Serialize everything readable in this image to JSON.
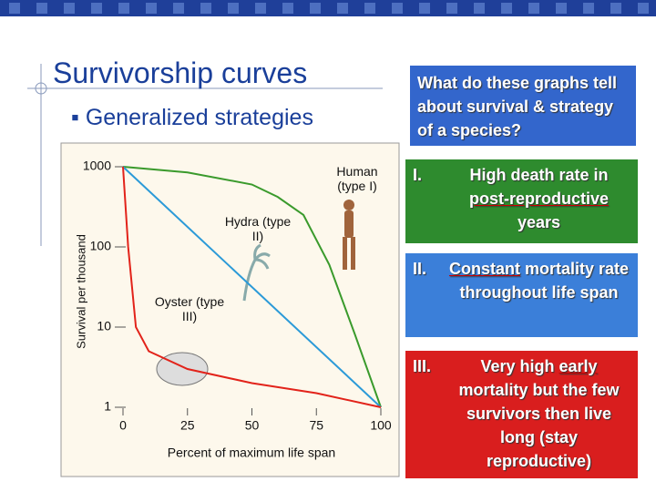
{
  "slide": {
    "title": "Survivorship curves",
    "bullet": "Generalized strategies",
    "question": "What do these graphs tell about survival & strategy of a species?",
    "points": [
      {
        "numeral": "I.",
        "parts": [
          "High death rate in ",
          "post-reproductive",
          " years"
        ]
      },
      {
        "numeral": "II.",
        "parts": [
          "Constant",
          " mortality rate throughout life span"
        ]
      },
      {
        "numeral": "III.",
        "parts": [
          "Very high ",
          "early",
          " mortality but the few survivors then live long (stay reproductive)"
        ]
      }
    ]
  },
  "chart_data": {
    "type": "line",
    "xlabel": "Percent of maximum life span",
    "ylabel": "Survival per thousand",
    "log_y": true,
    "xlim": [
      0,
      100
    ],
    "ylim": [
      1,
      1000
    ],
    "xticks": [
      0,
      25,
      50,
      75,
      100
    ],
    "yticks": [
      1,
      10,
      100,
      1000
    ],
    "series": [
      {
        "name": "Human (type I)",
        "color": "#3a9a2c",
        "x": [
          0,
          25,
          50,
          60,
          70,
          80,
          90,
          100
        ],
        "values": [
          1000,
          850,
          600,
          420,
          250,
          60,
          8,
          1
        ]
      },
      {
        "name": "Hydra (type II)",
        "color": "#2b9ad8",
        "x": [
          0,
          100
        ],
        "values": [
          1000,
          1
        ]
      },
      {
        "name": "Oyster (type III)",
        "color": "#e2231a",
        "x": [
          0,
          2,
          5,
          10,
          25,
          50,
          75,
          100
        ],
        "values": [
          1000,
          100,
          10,
          5,
          3,
          2,
          1.5,
          1
        ]
      }
    ]
  }
}
